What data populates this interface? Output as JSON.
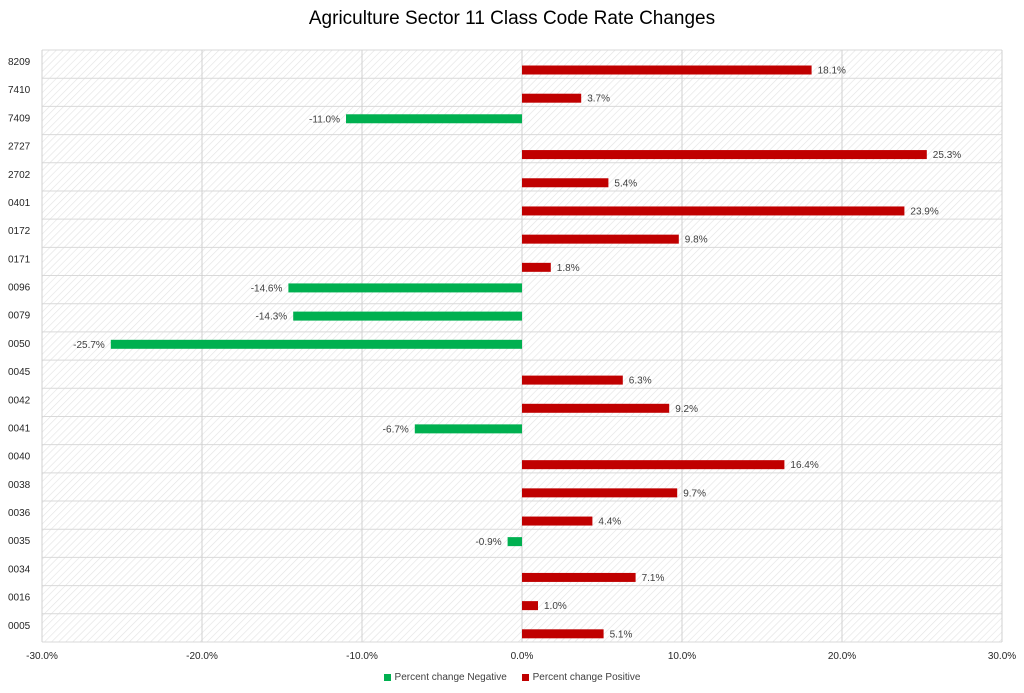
{
  "chart_data": {
    "type": "bar",
    "orientation": "horizontal",
    "title": "Agriculture Sector 11 Class Code Rate Changes",
    "categories": [
      "8209",
      "7410",
      "7409",
      "2727",
      "2702",
      "0401",
      "0172",
      "0171",
      "0096",
      "0079",
      "0050",
      "0045",
      "0042",
      "0041",
      "0040",
      "0038",
      "0036",
      "0035",
      "0034",
      "0016",
      "0005"
    ],
    "series": [
      {
        "name": "Percent change Negative",
        "color": "#00b050",
        "values": [
          null,
          null,
          -11.0,
          null,
          null,
          null,
          null,
          null,
          -14.6,
          -14.3,
          -25.7,
          null,
          null,
          -6.7,
          null,
          null,
          null,
          -0.9,
          null,
          null,
          null
        ],
        "labels": [
          "",
          "",
          "-11.0%",
          "",
          "",
          "",
          "",
          "",
          "-14.6%",
          "-14.3%",
          "-25.7%",
          "",
          "",
          "-6.7%",
          "",
          "",
          "",
          "-0.9%",
          "",
          "",
          ""
        ]
      },
      {
        "name": "Percent change Positive",
        "color": "#c00000",
        "values": [
          18.1,
          3.7,
          null,
          25.3,
          5.4,
          23.9,
          9.8,
          1.8,
          null,
          null,
          null,
          6.3,
          9.2,
          null,
          16.4,
          9.7,
          4.4,
          null,
          7.1,
          1.0,
          5.1
        ],
        "labels": [
          "18.1%",
          "3.7%",
          "",
          "25.3%",
          "5.4%",
          "23.9%",
          "9.8%",
          "1.8%",
          "",
          "",
          "",
          "6.3%",
          "9.2%",
          "",
          "16.4%",
          "9.7%",
          "4.4%",
          "",
          "7.1%",
          "1.0%",
          "5.1%"
        ]
      }
    ],
    "xlim": [
      -30,
      30
    ],
    "xticks": [
      -30,
      -20,
      -10,
      0,
      10,
      20,
      30
    ],
    "xtick_labels": [
      "-30.0%",
      "-20.0%",
      "-10.0%",
      "0.0%",
      "10.0%",
      "20.0%",
      "30.0%"
    ],
    "grid": true,
    "legend_position": "bottom"
  }
}
